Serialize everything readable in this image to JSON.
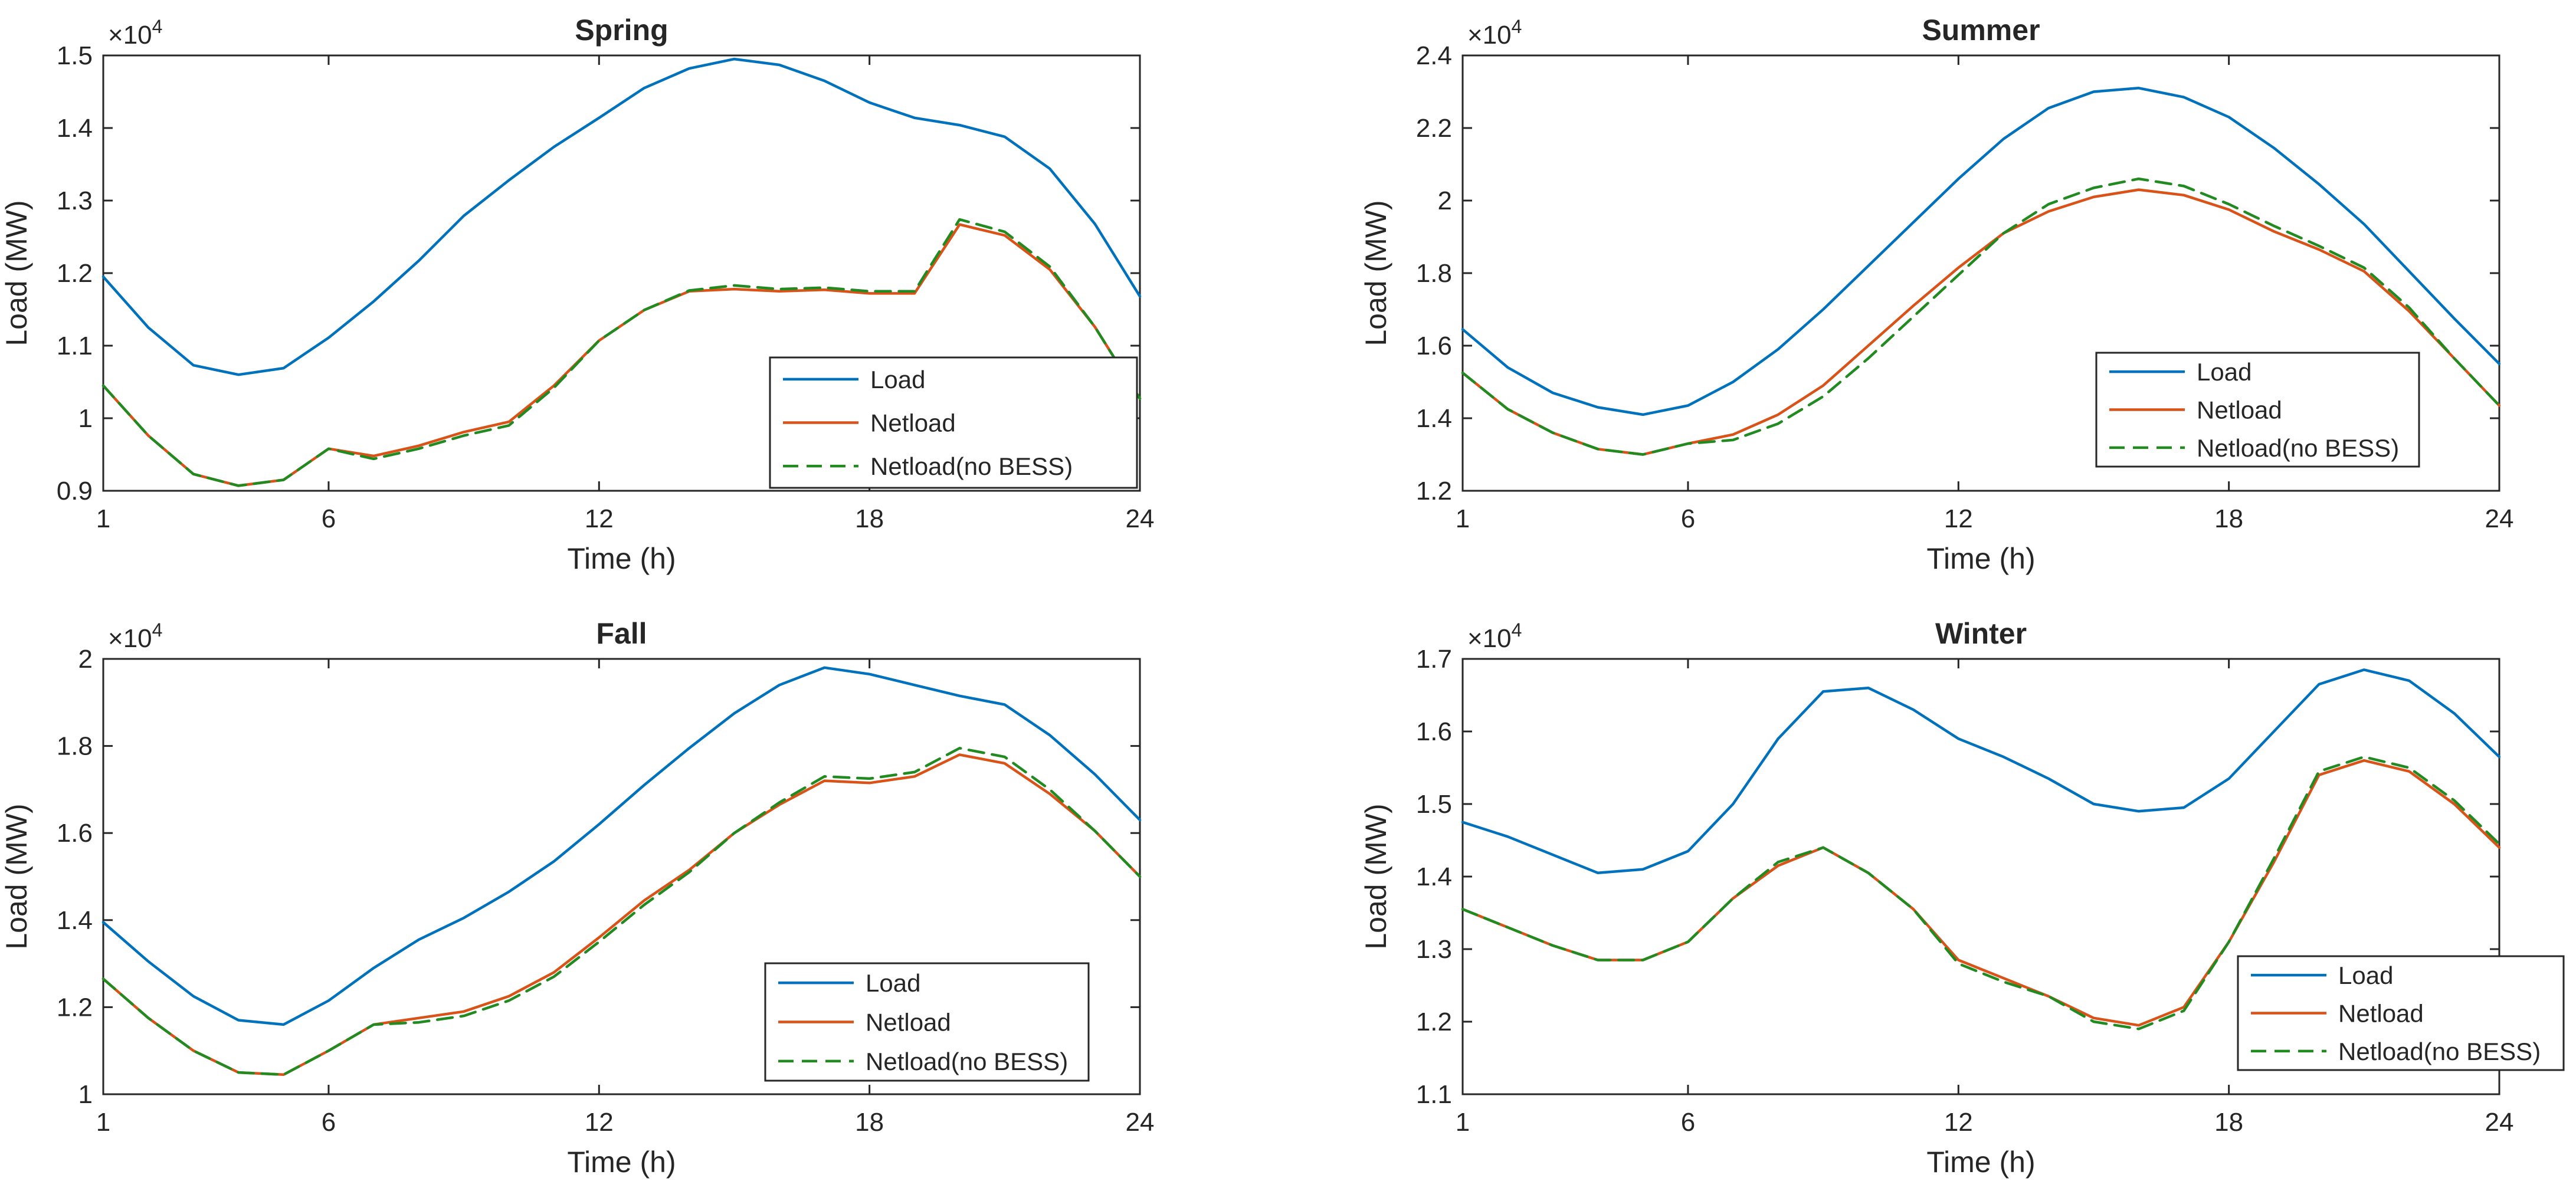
{
  "chart_data": [
    {
      "type": "line",
      "title": "Spring",
      "xlabel": "Time (h)",
      "ylabel": "Load (MW)",
      "y_multiplier": "×10",
      "y_exponent": "4",
      "xlim": [
        1,
        24
      ],
      "ylim": [
        0.9,
        1.5
      ],
      "xticks": [
        1,
        6,
        12,
        18,
        24
      ],
      "yticks": [
        0.9,
        1,
        1.1,
        1.2,
        1.3,
        1.4,
        1.5
      ],
      "ytick_labels": [
        "0.9",
        "1",
        "1.1",
        "1.2",
        "1.3",
        "1.4",
        "1.5"
      ],
      "legend_position": "bottom-right",
      "x": [
        1,
        2,
        3,
        4,
        5,
        6,
        7,
        8,
        9,
        10,
        11,
        12,
        13,
        14,
        15,
        16,
        17,
        18,
        19,
        20,
        21,
        22,
        23,
        24
      ],
      "series": [
        {
          "name": "Load",
          "color": "#0072BD",
          "dash": "solid",
          "values": [
            1.195,
            1.125,
            1.073,
            1.06,
            1.069,
            1.111,
            1.161,
            1.217,
            1.279,
            1.328,
            1.374,
            1.414,
            1.455,
            1.482,
            1.495,
            1.487,
            1.465,
            1.435,
            1.414,
            1.404,
            1.388,
            1.344,
            1.268,
            1.168
          ]
        },
        {
          "name": "Netload",
          "color": "#D95319",
          "dash": "solid",
          "values": [
            1.045,
            0.976,
            0.923,
            0.907,
            0.915,
            0.958,
            0.948,
            0.962,
            0.981,
            0.995,
            1.045,
            1.107,
            1.149,
            1.175,
            1.178,
            1.175,
            1.177,
            1.172,
            1.172,
            1.267,
            1.252,
            1.205,
            1.126,
            1.027
          ]
        },
        {
          "name": "Netload(no BESS)",
          "color": "#218A21",
          "dash": "dashed",
          "values": [
            1.045,
            0.976,
            0.923,
            0.907,
            0.915,
            0.958,
            0.944,
            0.958,
            0.976,
            0.99,
            1.042,
            1.107,
            1.149,
            1.176,
            1.183,
            1.178,
            1.18,
            1.175,
            1.175,
            1.274,
            1.257,
            1.209,
            1.126,
            1.027
          ]
        }
      ]
    },
    {
      "type": "line",
      "title": "Summer",
      "xlabel": "Time (h)",
      "ylabel": "Load (MW)",
      "y_multiplier": "×10",
      "y_exponent": "4",
      "xlim": [
        1,
        24
      ],
      "ylim": [
        1.2,
        2.4
      ],
      "xticks": [
        1,
        6,
        12,
        18,
        24
      ],
      "yticks": [
        1.2,
        1.4,
        1.6,
        1.8,
        2.0,
        2.2,
        2.4
      ],
      "ytick_labels": [
        "1.2",
        "1.4",
        "1.6",
        "1.8",
        "2",
        "2.2",
        "2.4"
      ],
      "legend_position": "bottom-right",
      "x": [
        1,
        2,
        3,
        4,
        5,
        6,
        7,
        8,
        9,
        10,
        11,
        12,
        13,
        14,
        15,
        16,
        17,
        18,
        19,
        20,
        21,
        22,
        23,
        24
      ],
      "series": [
        {
          "name": "Load",
          "color": "#0072BD",
          "dash": "solid",
          "values": [
            1.645,
            1.54,
            1.47,
            1.43,
            1.41,
            1.435,
            1.5,
            1.59,
            1.7,
            1.82,
            1.94,
            2.06,
            2.17,
            2.255,
            2.3,
            2.31,
            2.285,
            2.23,
            2.145,
            2.045,
            1.935,
            1.805,
            1.675,
            1.55
          ]
        },
        {
          "name": "Netload",
          "color": "#D95319",
          "dash": "solid",
          "values": [
            1.525,
            1.425,
            1.36,
            1.315,
            1.3,
            1.33,
            1.355,
            1.41,
            1.49,
            1.6,
            1.71,
            1.815,
            1.91,
            1.97,
            2.01,
            2.03,
            2.015,
            1.975,
            1.915,
            1.865,
            1.805,
            1.695,
            1.565,
            1.435
          ]
        },
        {
          "name": "Netload(no BESS)",
          "color": "#218A21",
          "dash": "dashed",
          "values": [
            1.525,
            1.425,
            1.36,
            1.315,
            1.3,
            1.33,
            1.34,
            1.385,
            1.46,
            1.565,
            1.68,
            1.795,
            1.91,
            1.99,
            2.035,
            2.06,
            2.04,
            1.99,
            1.93,
            1.875,
            1.815,
            1.705,
            1.565,
            1.435
          ]
        }
      ]
    },
    {
      "type": "line",
      "title": "Fall",
      "xlabel": "Time (h)",
      "ylabel": "Load (MW)",
      "y_multiplier": "×10",
      "y_exponent": "4",
      "xlim": [
        1,
        24
      ],
      "ylim": [
        1.0,
        2.0
      ],
      "xticks": [
        1,
        6,
        12,
        18,
        24
      ],
      "yticks": [
        1.0,
        1.2,
        1.4,
        1.6,
        1.8,
        2.0
      ],
      "ytick_labels": [
        "1",
        "1.2",
        "1.4",
        "1.6",
        "1.8",
        "2"
      ],
      "legend_position": "bottom-right",
      "x": [
        1,
        2,
        3,
        4,
        5,
        6,
        7,
        8,
        9,
        10,
        11,
        12,
        13,
        14,
        15,
        16,
        17,
        18,
        19,
        20,
        21,
        22,
        23,
        24
      ],
      "series": [
        {
          "name": "Load",
          "color": "#0072BD",
          "dash": "solid",
          "values": [
            1.395,
            1.305,
            1.225,
            1.17,
            1.16,
            1.215,
            1.29,
            1.355,
            1.405,
            1.465,
            1.535,
            1.62,
            1.71,
            1.795,
            1.875,
            1.94,
            1.98,
            1.965,
            1.94,
            1.915,
            1.895,
            1.825,
            1.735,
            1.63
          ]
        },
        {
          "name": "Netload",
          "color": "#D95319",
          "dash": "solid",
          "values": [
            1.265,
            1.175,
            1.1,
            1.05,
            1.045,
            1.1,
            1.16,
            1.175,
            1.19,
            1.225,
            1.28,
            1.36,
            1.445,
            1.515,
            1.6,
            1.665,
            1.72,
            1.715,
            1.73,
            1.78,
            1.76,
            1.69,
            1.605,
            1.5
          ]
        },
        {
          "name": "Netload(no BESS)",
          "color": "#218A21",
          "dash": "dashed",
          "values": [
            1.265,
            1.175,
            1.1,
            1.05,
            1.045,
            1.1,
            1.16,
            1.165,
            1.18,
            1.215,
            1.27,
            1.35,
            1.435,
            1.51,
            1.6,
            1.67,
            1.73,
            1.725,
            1.74,
            1.795,
            1.775,
            1.7,
            1.605,
            1.5
          ]
        }
      ]
    },
    {
      "type": "line",
      "title": "Winter",
      "xlabel": "Time (h)",
      "ylabel": "Load (MW)",
      "y_multiplier": "×10",
      "y_exponent": "4",
      "xlim": [
        1,
        24
      ],
      "ylim": [
        1.1,
        1.7
      ],
      "xticks": [
        1,
        6,
        12,
        18,
        24
      ],
      "yticks": [
        1.1,
        1.2,
        1.3,
        1.4,
        1.5,
        1.6,
        1.7
      ],
      "ytick_labels": [
        "1.1",
        "1.2",
        "1.3",
        "1.4",
        "1.5",
        "1.6",
        "1.7"
      ],
      "legend_position": "bottom-right",
      "x": [
        1,
        2,
        3,
        4,
        5,
        6,
        7,
        8,
        9,
        10,
        11,
        12,
        13,
        14,
        15,
        16,
        17,
        18,
        19,
        20,
        21,
        22,
        23,
        24
      ],
      "series": [
        {
          "name": "Load",
          "color": "#0072BD",
          "dash": "solid",
          "values": [
            1.475,
            1.455,
            1.43,
            1.405,
            1.41,
            1.435,
            1.5,
            1.59,
            1.655,
            1.66,
            1.63,
            1.59,
            1.565,
            1.535,
            1.5,
            1.49,
            1.495,
            1.535,
            1.6,
            1.665,
            1.685,
            1.67,
            1.625,
            1.565
          ]
        },
        {
          "name": "Netload",
          "color": "#D95319",
          "dash": "solid",
          "values": [
            1.355,
            1.33,
            1.305,
            1.285,
            1.285,
            1.31,
            1.37,
            1.415,
            1.44,
            1.405,
            1.355,
            1.285,
            1.26,
            1.235,
            1.205,
            1.195,
            1.22,
            1.31,
            1.42,
            1.54,
            1.56,
            1.545,
            1.5,
            1.44
          ]
        },
        {
          "name": "Netload(no BESS)",
          "color": "#218A21",
          "dash": "dashed",
          "values": [
            1.355,
            1.33,
            1.305,
            1.285,
            1.285,
            1.31,
            1.37,
            1.42,
            1.44,
            1.405,
            1.355,
            1.28,
            1.255,
            1.235,
            1.2,
            1.19,
            1.215,
            1.31,
            1.425,
            1.545,
            1.565,
            1.55,
            1.505,
            1.445
          ]
        }
      ]
    }
  ]
}
